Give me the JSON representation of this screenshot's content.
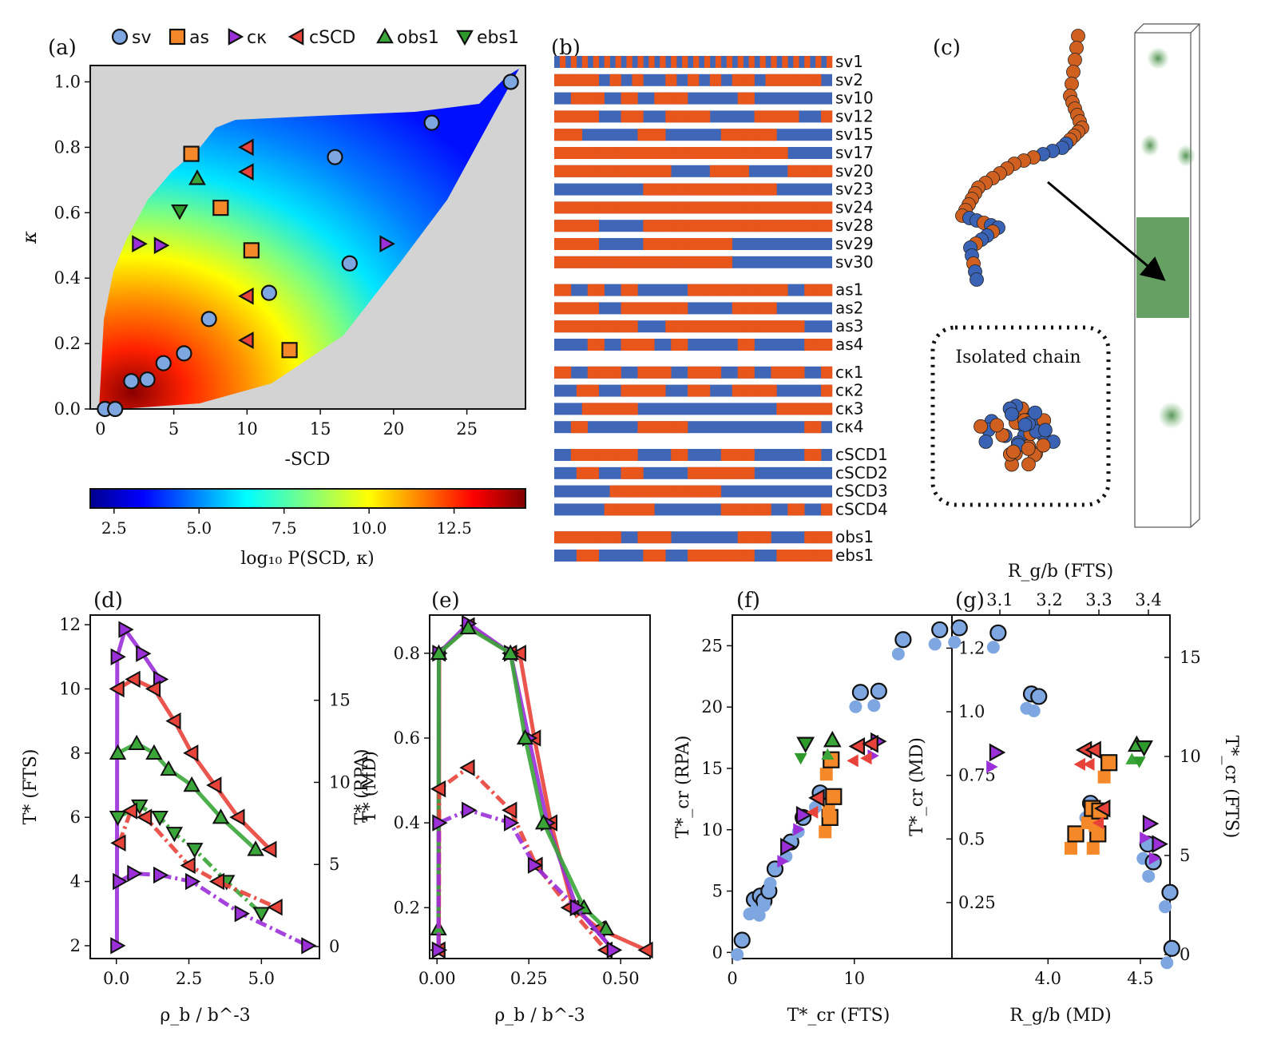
{
  "panel_labels": {
    "a": "(a)",
    "b": "(b)",
    "c": "(c)",
    "d": "(d)",
    "e": "(e)",
    "f": "(f)",
    "g": "(g)"
  },
  "legend": [
    {
      "key": "sv",
      "label": "sv",
      "marker": "circle",
      "color": "#7ea6e0"
    },
    {
      "key": "as",
      "label": "as",
      "marker": "square",
      "color": "#f5892a"
    },
    {
      "key": "ck",
      "label": "cκ",
      "marker": "tri-right",
      "color": "#9b30d9"
    },
    {
      "key": "cscd",
      "label": "cSCD",
      "marker": "tri-left",
      "color": "#e8433a"
    },
    {
      "key": "obs",
      "label": "obs1",
      "marker": "tri-up",
      "color": "#3aa639"
    },
    {
      "key": "ebs",
      "label": "ebs1",
      "marker": "tri-down",
      "color": "#2f9a2c"
    }
  ],
  "panel_c": {
    "inset_label": "Isolated chain"
  },
  "panel_b": {
    "colors": {
      "pos": "#4066b8",
      "neg": "#e8561b"
    },
    "groups": [
      [
        "sv1",
        "sv2",
        "sv10",
        "sv12",
        "sv15",
        "sv17",
        "sv20",
        "sv23",
        "sv24",
        "sv28",
        "sv29",
        "sv30"
      ],
      [
        "as1",
        "as2",
        "as3",
        "as4"
      ],
      [
        "cκ1",
        "cκ2",
        "cκ3",
        "cκ4"
      ],
      [
        "cSCD1",
        "cSCD2",
        "cSCD3",
        "cSCD4"
      ],
      [
        "obs1",
        "ebs1"
      ]
    ]
  },
  "colorbar": {
    "label": "log₁₀ P(SCD, κ)",
    "ticks": [
      "2.5",
      "5.0",
      "7.5",
      "10.0",
      "12.5"
    ],
    "range": [
      1.8,
      14.6
    ]
  },
  "chart_data": [
    {
      "panel": "a",
      "type": "scatter",
      "xlabel": "-SCD",
      "ylabel": "κ",
      "xlim": [
        -0.7,
        29
      ],
      "ylim": [
        0,
        1.05
      ],
      "xticks": [
        "0",
        "5",
        "10",
        "15",
        "20",
        "25"
      ],
      "yticks": [
        "0.0",
        "0.2",
        "0.4",
        "0.6",
        "0.8",
        "1.0"
      ],
      "series": [
        {
          "name": "sv",
          "points": [
            [
              0.3,
              0.0
            ],
            [
              1.0,
              0.0
            ],
            [
              2.1,
              0.085
            ],
            [
              3.2,
              0.09
            ],
            [
              4.3,
              0.14
            ],
            [
              5.7,
              0.17
            ],
            [
              7.4,
              0.275
            ],
            [
              11.5,
              0.355
            ],
            [
              17.0,
              0.445
            ],
            [
              16.0,
              0.77
            ],
            [
              22.6,
              0.875
            ],
            [
              28.0,
              1.0
            ]
          ]
        },
        {
          "name": "as",
          "points": [
            [
              6.2,
              0.78
            ],
            [
              8.2,
              0.615
            ],
            [
              10.3,
              0.485
            ],
            [
              12.9,
              0.18
            ]
          ]
        },
        {
          "name": "ck",
          "points": [
            [
              2.6,
              0.505
            ],
            [
              4.1,
              0.5
            ],
            [
              19.5,
              0.505
            ]
          ]
        },
        {
          "name": "cscd",
          "points": [
            [
              10.0,
              0.8
            ],
            [
              10.0,
              0.725
            ],
            [
              10.0,
              0.345
            ],
            [
              10.0,
              0.21
            ]
          ]
        },
        {
          "name": "obs",
          "points": [
            [
              6.6,
              0.705
            ]
          ]
        },
        {
          "name": "ebs",
          "points": [
            [
              5.4,
              0.605
            ]
          ]
        }
      ]
    },
    {
      "panel": "d",
      "type": "line",
      "xlabel": "ρ_b / b^-3",
      "ylabel": "T* (FTS)",
      "ylabel_right": "T* (RPA)",
      "xlim": [
        -0.9,
        7.0
      ],
      "ylim": [
        1.6,
        12.3
      ],
      "xticks": [
        "0.0",
        "2.5",
        "5.0"
      ],
      "yticks": [
        "2",
        "4",
        "6",
        "8",
        "10",
        "12"
      ],
      "yticks_right": [
        "0",
        "5",
        "10",
        "15"
      ],
      "series": [
        {
          "name": "cκ high",
          "points": [
            [
              0.02,
              2
            ],
            [
              0.03,
              11
            ],
            [
              0.3,
              11.85
            ],
            [
              0.9,
              11.1
            ],
            [
              1.5,
              10.3
            ]
          ]
        },
        {
          "name": "cSCD high",
          "points": [
            [
              0.05,
              10
            ],
            [
              0.6,
              10.3
            ],
            [
              1.3,
              10
            ],
            [
              2.0,
              9
            ],
            [
              2.6,
              8
            ],
            [
              3.4,
              7
            ],
            [
              4.2,
              6
            ],
            [
              5.3,
              5
            ]
          ]
        },
        {
          "name": "obs",
          "points": [
            [
              0.05,
              8
            ],
            [
              0.7,
              8.3
            ],
            [
              1.3,
              8
            ],
            [
              1.8,
              7.5
            ],
            [
              2.6,
              7
            ],
            [
              3.6,
              6
            ],
            [
              4.8,
              5
            ]
          ]
        },
        {
          "name": "ebs",
          "points": [
            [
              0.05,
              6
            ],
            [
              0.8,
              6.35
            ],
            [
              1.5,
              6
            ],
            [
              2.0,
              5.5
            ],
            [
              2.7,
              5
            ],
            [
              3.8,
              4
            ],
            [
              5.0,
              3
            ]
          ]
        },
        {
          "name": "cSCD low",
          "points": [
            [
              0.1,
              5.2
            ],
            [
              0.5,
              6.2
            ],
            [
              1.0,
              6
            ],
            [
              2.5,
              4.5
            ],
            [
              3.5,
              4
            ],
            [
              5.5,
              3.2
            ]
          ]
        },
        {
          "name": "cκ low",
          "points": [
            [
              0.1,
              4
            ],
            [
              0.6,
              4.25
            ],
            [
              1.5,
              4.2
            ],
            [
              2.6,
              4
            ],
            [
              4.3,
              3
            ],
            [
              6.6,
              2
            ]
          ]
        }
      ]
    },
    {
      "panel": "e",
      "type": "line",
      "xlabel": "ρ_b / b^-3",
      "ylabel": "T* (MD)",
      "xlim": [
        -0.02,
        0.58
      ],
      "ylim": [
        0.08,
        0.89
      ],
      "xticks": [
        "0.00",
        "0.25",
        "0.50"
      ],
      "yticks": [
        "0.2",
        "0.4",
        "0.6",
        "0.8"
      ],
      "series": [
        {
          "name": "cSCD",
          "points": [
            [
              0.005,
              0.1
            ],
            [
              0.006,
              0.8
            ],
            [
              0.085,
              0.865
            ],
            [
              0.2,
              0.8
            ],
            [
              0.225,
              0.8
            ],
            [
              0.265,
              0.6
            ],
            [
              0.31,
              0.4
            ],
            [
              0.37,
              0.2
            ],
            [
              0.44,
              0.15
            ],
            [
              0.57,
              0.1
            ]
          ]
        },
        {
          "name": "cκ",
          "points": [
            [
              0.004,
              0.1
            ],
            [
              0.005,
              0.8
            ],
            [
              0.085,
              0.87
            ],
            [
              0.2,
              0.8
            ],
            [
              0.25,
              0.6
            ],
            [
              0.3,
              0.4
            ],
            [
              0.38,
              0.2
            ],
            [
              0.48,
              0.1
            ]
          ]
        },
        {
          "name": "obs",
          "points": [
            [
              0.004,
              0.15
            ],
            [
              0.005,
              0.8
            ],
            [
              0.085,
              0.86
            ],
            [
              0.2,
              0.8
            ],
            [
              0.24,
              0.6
            ],
            [
              0.29,
              0.4
            ],
            [
              0.4,
              0.2
            ],
            [
              0.46,
              0.15
            ]
          ]
        },
        {
          "name": "cSCD dash",
          "points": [
            [
              0.005,
              0.1
            ],
            [
              0.006,
              0.48
            ],
            [
              0.085,
              0.53
            ],
            [
              0.2,
              0.43
            ],
            [
              0.27,
              0.3
            ],
            [
              0.36,
              0.2
            ],
            [
              0.46,
              0.1
            ]
          ]
        },
        {
          "name": "cκ dash",
          "points": [
            [
              0.004,
              0.1
            ],
            [
              0.005,
              0.4
            ],
            [
              0.085,
              0.43
            ],
            [
              0.2,
              0.4
            ],
            [
              0.265,
              0.3
            ],
            [
              0.38,
              0.2
            ],
            [
              0.48,
              0.1
            ]
          ]
        }
      ]
    },
    {
      "panel": "f",
      "type": "scatter",
      "xlabel": "T*_cr (FTS)",
      "ylabel": "T*_cr (RPA)",
      "xlim": [
        0,
        18
      ],
      "ylim": [
        -0.5,
        27.5
      ],
      "xticks": [
        "0",
        "10"
      ],
      "yticks": [
        "0",
        "5",
        "10",
        "15",
        "20",
        "25"
      ],
      "series": [
        {
          "name": "sv",
          "points": [
            [
              0.8,
              1
            ],
            [
              1.8,
              4.3
            ],
            [
              2.3,
              4.6
            ],
            [
              2.6,
              4.2
            ],
            [
              3.0,
              5.0
            ],
            [
              3.5,
              6.8
            ],
            [
              4.8,
              9
            ],
            [
              5.8,
              11
            ],
            [
              7.2,
              13
            ],
            [
              10.5,
              21.2
            ],
            [
              12.0,
              21.3
            ],
            [
              14.0,
              25.5
            ],
            [
              17.0,
              26.3
            ]
          ]
        },
        {
          "name": "as",
          "points": [
            [
              8.0,
              11.0
            ],
            [
              8.3,
              12.7
            ],
            [
              8.1,
              15.7
            ]
          ]
        },
        {
          "name": "ck",
          "points": [
            [
              4.5,
              8.6
            ],
            [
              5.8,
              11.2
            ],
            [
              11.9,
              17.2
            ]
          ]
        },
        {
          "name": "cscd",
          "points": [
            [
              7.0,
              12.6
            ],
            [
              10.3,
              16.8
            ],
            [
              11.4,
              17.0
            ]
          ]
        },
        {
          "name": "obs",
          "points": [
            [
              8.2,
              17.3
            ]
          ]
        },
        {
          "name": "ebs",
          "points": [
            [
              6.0,
              17.0
            ]
          ]
        }
      ]
    },
    {
      "panel": "g",
      "type": "scatter",
      "xlabel": "R_g/b (MD)",
      "ylabel": "T*_cr (MD)",
      "ylabel_right": "T*_cr (FTS)",
      "toplabel": "R_g/b (FTS)",
      "xlim": [
        3.48,
        4.66
      ],
      "ylim": [
        0.03,
        1.38
      ],
      "xticks": [
        "4.0",
        "4.5"
      ],
      "xticks_top": [
        "3.1",
        "3.2",
        "3.3",
        "3.4"
      ],
      "yticks": [
        "0.25",
        "0.5",
        "0.75",
        "1.0",
        "1.2"
      ],
      "yticks_right": [
        "0",
        "5",
        "10",
        "15"
      ],
      "series": [
        {
          "name": "sv",
          "points": [
            [
              3.52,
              1.33
            ],
            [
              3.73,
              1.31
            ],
            [
              3.91,
              1.07
            ],
            [
              3.95,
              1.06
            ],
            [
              4.23,
              0.64
            ],
            [
              4.54,
              0.48
            ],
            [
              4.57,
              0.41
            ],
            [
              4.66,
              0.29
            ],
            [
              4.66,
              0.29
            ],
            [
              4.67,
              0.07
            ]
          ]
        },
        {
          "name": "as",
          "points": [
            [
              4.15,
              0.52
            ],
            [
              4.24,
              0.62
            ],
            [
              4.27,
              0.52
            ],
            [
              4.28,
              0.61
            ],
            [
              4.33,
              0.8
            ]
          ]
        },
        {
          "name": "ck",
          "points": [
            [
              3.72,
              0.84
            ],
            [
              4.55,
              0.56
            ],
            [
              4.6,
              0.48
            ]
          ]
        },
        {
          "name": "cscd",
          "points": [
            [
              4.2,
              0.85
            ],
            [
              4.25,
              0.85
            ],
            [
              4.3,
              0.62
            ]
          ]
        },
        {
          "name": "obs",
          "points": [
            [
              4.48,
              0.87
            ]
          ]
        },
        {
          "name": "ebs",
          "points": [
            [
              4.52,
              0.86
            ]
          ]
        }
      ]
    }
  ]
}
